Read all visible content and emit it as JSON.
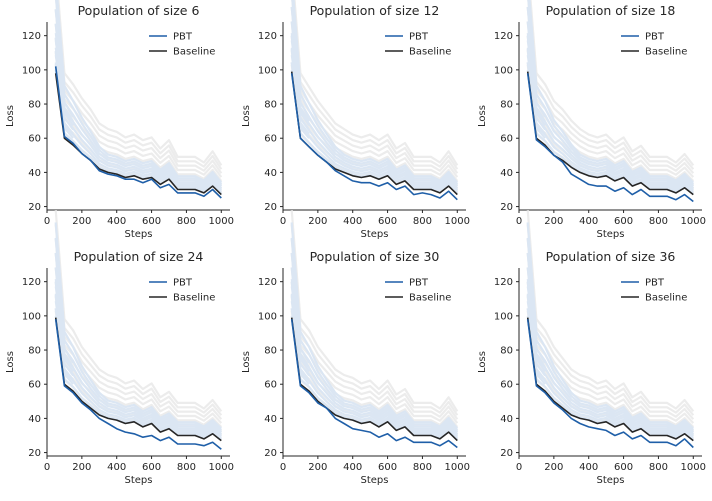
{
  "colors": {
    "pbt": "#1f5fa8",
    "baseline": "#262626",
    "population": "#ececec",
    "population_blue": "#dbe6f3",
    "axis": "#262626"
  },
  "chart_data": [
    {
      "type": "line",
      "title": "Population of size 6",
      "xlabel": "Steps",
      "ylabel": "Loss",
      "xlim": [
        0,
        1050
      ],
      "ylim": [
        18,
        128
      ],
      "xticks": [
        0,
        200,
        400,
        600,
        800,
        1000
      ],
      "yticks": [
        20,
        40,
        60,
        80,
        100,
        120
      ],
      "legend": "top-right",
      "grid": false,
      "x": [
        50,
        100,
        150,
        200,
        250,
        300,
        350,
        400,
        450,
        500,
        550,
        600,
        650,
        700,
        750,
        800,
        850,
        900,
        950,
        1000
      ],
      "series": [
        {
          "name": "PBT",
          "values": [
            102,
            61,
            57,
            51,
            47,
            41,
            39,
            38,
            36,
            36,
            34,
            36,
            31,
            33,
            28,
            28,
            28,
            26,
            30,
            25
          ]
        },
        {
          "name": "Baseline",
          "values": [
            98,
            60,
            56,
            51,
            47,
            42,
            40,
            39,
            37,
            38,
            36,
            37,
            33,
            36,
            30,
            30,
            30,
            28,
            32,
            27
          ]
        }
      ]
    },
    {
      "type": "line",
      "title": "Population of size 12",
      "xlabel": "Steps",
      "ylabel": "Loss",
      "xlim": [
        0,
        1050
      ],
      "ylim": [
        18,
        128
      ],
      "xticks": [
        0,
        200,
        400,
        600,
        800,
        1000
      ],
      "yticks": [
        20,
        40,
        60,
        80,
        100,
        120
      ],
      "legend": "top-right",
      "grid": false,
      "x": [
        50,
        100,
        150,
        200,
        250,
        300,
        350,
        400,
        450,
        500,
        550,
        600,
        650,
        700,
        750,
        800,
        850,
        900,
        950,
        1000
      ],
      "series": [
        {
          "name": "PBT",
          "values": [
            98,
            60,
            55,
            50,
            46,
            41,
            38,
            35,
            34,
            34,
            32,
            34,
            30,
            32,
            27,
            28,
            27,
            25,
            29,
            24
          ]
        },
        {
          "name": "Baseline",
          "values": [
            99,
            60,
            55,
            50,
            46,
            42,
            40,
            38,
            37,
            38,
            36,
            38,
            33,
            35,
            30,
            30,
            30,
            28,
            32,
            27
          ]
        }
      ]
    },
    {
      "type": "line",
      "title": "Population of size 18",
      "xlabel": "Steps",
      "ylabel": "Loss",
      "xlim": [
        0,
        1050
      ],
      "ylim": [
        18,
        128
      ],
      "xticks": [
        0,
        200,
        400,
        600,
        800,
        1000
      ],
      "yticks": [
        20,
        40,
        60,
        80,
        100,
        120
      ],
      "legend": "top-right",
      "grid": false,
      "x": [
        50,
        100,
        150,
        200,
        250,
        300,
        350,
        400,
        450,
        500,
        550,
        600,
        650,
        700,
        750,
        800,
        850,
        900,
        950,
        1000
      ],
      "series": [
        {
          "name": "PBT",
          "values": [
            98,
            59,
            55,
            50,
            46,
            39,
            36,
            33,
            32,
            32,
            29,
            31,
            27,
            30,
            26,
            26,
            26,
            24,
            27,
            23
          ]
        },
        {
          "name": "Baseline",
          "values": [
            99,
            60,
            56,
            50,
            47,
            43,
            40,
            38,
            37,
            38,
            35,
            37,
            32,
            34,
            30,
            30,
            30,
            28,
            31,
            27
          ]
        }
      ]
    },
    {
      "type": "line",
      "title": "Population of size 24",
      "xlabel": "Steps",
      "ylabel": "Loss",
      "xlim": [
        0,
        1050
      ],
      "ylim": [
        18,
        128
      ],
      "xticks": [
        0,
        200,
        400,
        600,
        800,
        1000
      ],
      "yticks": [
        20,
        40,
        60,
        80,
        100,
        120
      ],
      "legend": "top-right",
      "grid": false,
      "x": [
        50,
        100,
        150,
        200,
        250,
        300,
        350,
        400,
        450,
        500,
        550,
        600,
        650,
        700,
        750,
        800,
        850,
        900,
        950,
        1000
      ],
      "series": [
        {
          "name": "PBT",
          "values": [
            98,
            59,
            55,
            49,
            45,
            40,
            37,
            34,
            32,
            31,
            29,
            30,
            27,
            29,
            25,
            25,
            25,
            24,
            26,
            22
          ]
        },
        {
          "name": "Baseline",
          "values": [
            99,
            60,
            56,
            50,
            46,
            42,
            40,
            39,
            37,
            38,
            35,
            37,
            32,
            34,
            30,
            30,
            30,
            28,
            31,
            27
          ]
        }
      ]
    },
    {
      "type": "line",
      "title": "Population of size 30",
      "xlabel": "Steps",
      "ylabel": "Loss",
      "xlim": [
        0,
        1050
      ],
      "ylim": [
        18,
        128
      ],
      "xticks": [
        0,
        200,
        400,
        600,
        800,
        1000
      ],
      "yticks": [
        20,
        40,
        60,
        80,
        100,
        120
      ],
      "legend": "top-right",
      "grid": false,
      "x": [
        50,
        100,
        150,
        200,
        250,
        300,
        350,
        400,
        450,
        500,
        550,
        600,
        650,
        700,
        750,
        800,
        850,
        900,
        950,
        1000
      ],
      "series": [
        {
          "name": "PBT",
          "values": [
            98,
            59,
            55,
            49,
            46,
            40,
            37,
            34,
            33,
            32,
            29,
            31,
            27,
            29,
            26,
            26,
            26,
            24,
            27,
            23
          ]
        },
        {
          "name": "Baseline",
          "values": [
            99,
            60,
            56,
            50,
            46,
            42,
            40,
            39,
            37,
            38,
            35,
            38,
            33,
            35,
            30,
            30,
            30,
            28,
            32,
            27
          ]
        }
      ]
    },
    {
      "type": "line",
      "title": "Population of size 36",
      "xlabel": "Steps",
      "ylabel": "Loss",
      "xlim": [
        0,
        1050
      ],
      "ylim": [
        18,
        128
      ],
      "xticks": [
        0,
        200,
        400,
        600,
        800,
        1000
      ],
      "yticks": [
        20,
        40,
        60,
        80,
        100,
        120
      ],
      "legend": "top-right",
      "grid": false,
      "x": [
        50,
        100,
        150,
        200,
        250,
        300,
        350,
        400,
        450,
        500,
        550,
        600,
        650,
        700,
        750,
        800,
        850,
        900,
        950,
        1000
      ],
      "series": [
        {
          "name": "PBT",
          "values": [
            98,
            59,
            55,
            49,
            45,
            40,
            37,
            35,
            34,
            33,
            30,
            32,
            28,
            30,
            26,
            26,
            26,
            24,
            28,
            23
          ]
        },
        {
          "name": "Baseline",
          "values": [
            99,
            60,
            56,
            50,
            46,
            42,
            40,
            39,
            37,
            38,
            35,
            37,
            32,
            34,
            30,
            30,
            30,
            28,
            31,
            27
          ]
        }
      ]
    }
  ]
}
